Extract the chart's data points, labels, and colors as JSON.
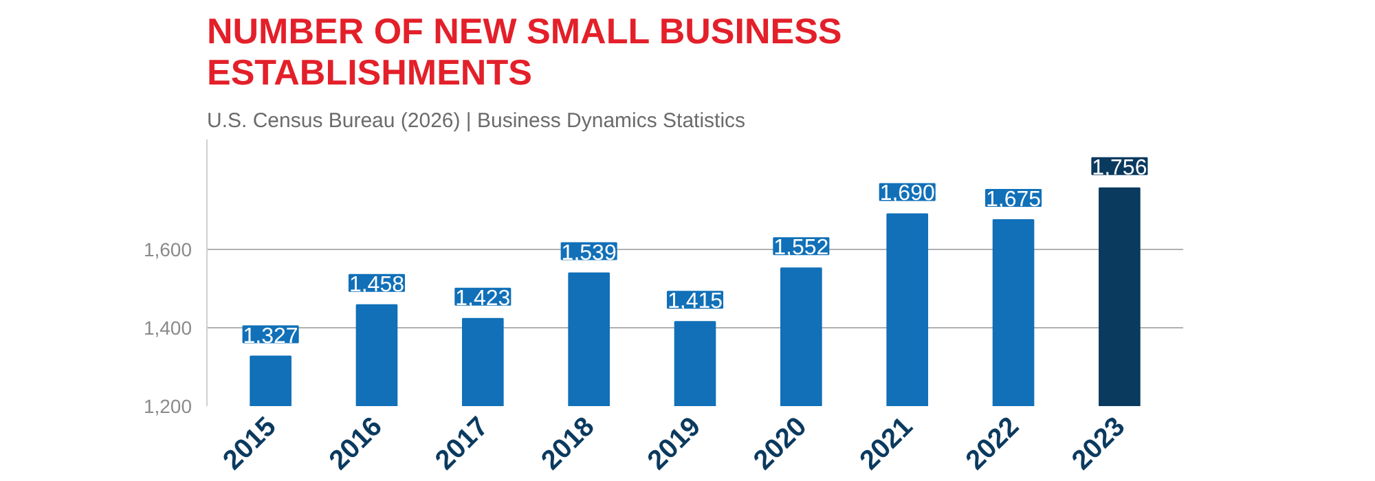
{
  "chart_data": {
    "type": "bar",
    "title": "NUMBER OF NEW SMALL BUSINESS\nESTABLISHMENTS",
    "subtitle": "U.S. Census Bureau (2026) | Business Dynamics Statistics",
    "categories": [
      "2015",
      "2016",
      "2017",
      "2018",
      "2019",
      "2020",
      "2021",
      "2022",
      "2023"
    ],
    "values": [
      1327,
      1458,
      1423,
      1539,
      1415,
      1552,
      1690,
      1675,
      1756
    ],
    "colors": [
      "#1170b8",
      "#1170b8",
      "#1170b8",
      "#1170b8",
      "#1170b8",
      "#1170b8",
      "#1170b8",
      "#1170b8",
      "#0b3a5f"
    ],
    "value_labels": [
      "1,327",
      "1,458",
      "1,423",
      "1,539",
      "1,415",
      "1,552",
      "1,690",
      "1,675",
      "1,756"
    ],
    "ylim": [
      1200,
      1880
    ],
    "yticks": [
      {
        "value": 1200,
        "label": "1,200"
      },
      {
        "value": 1400,
        "label": "1,400"
      },
      {
        "value": 1600,
        "label": "1,600"
      }
    ],
    "grid": "y"
  }
}
